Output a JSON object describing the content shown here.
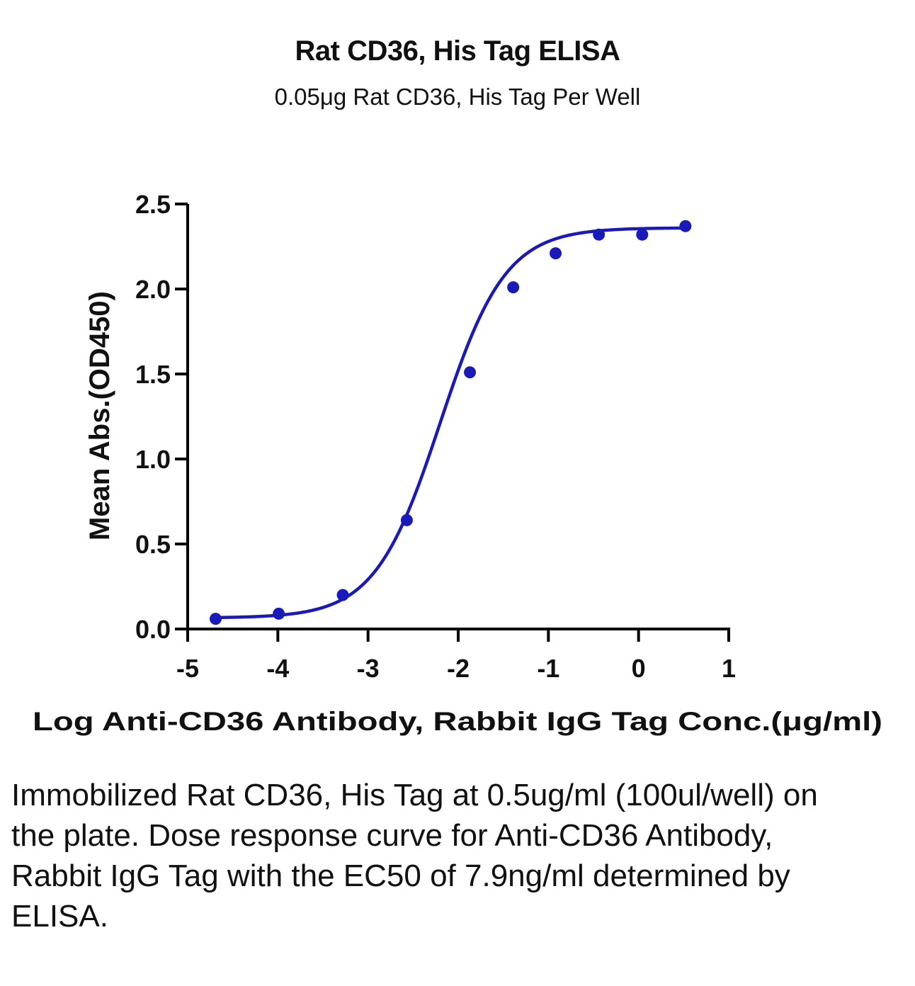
{
  "chart_data": {
    "type": "line",
    "title": "Rat CD36, His Tag ELISA",
    "subtitle": "0.05μg Rat CD36, His Tag Per Well",
    "xlabel": "Log Anti-CD36 Antibody, Rabbit IgG Tag Conc.(μg/ml)",
    "ylabel": "Mean Abs.(OD450)",
    "xlim": [
      -5,
      1
    ],
    "ylim": [
      0,
      2.5
    ],
    "xticks": [
      "-5",
      "-4",
      "-3",
      "-2",
      "-1",
      "0",
      "1"
    ],
    "yticks": [
      "0.0",
      "0.5",
      "1.0",
      "1.5",
      "2.0",
      "2.5"
    ],
    "grid": false,
    "series": [
      {
        "color": "#1a1aba",
        "points": [
          {
            "x": -4.69,
            "y": 0.06
          },
          {
            "x": -3.99,
            "y": 0.09
          },
          {
            "x": -3.28,
            "y": 0.2
          },
          {
            "x": -2.57,
            "y": 0.64
          },
          {
            "x": -1.87,
            "y": 1.51
          },
          {
            "x": -1.39,
            "y": 2.01
          },
          {
            "x": -0.92,
            "y": 2.21
          },
          {
            "x": -0.44,
            "y": 2.32
          },
          {
            "x": 0.04,
            "y": 2.32
          },
          {
            "x": 0.52,
            "y": 2.37
          }
        ]
      }
    ]
  },
  "caption": "Immobilized Rat CD36, His Tag at 0.5ug/ml (100ul/well) on the plate. Dose response curve for Anti-CD36 Antibody, Rabbit IgG Tag with the EC50 of 7.9ng/ml determined by ELISA."
}
